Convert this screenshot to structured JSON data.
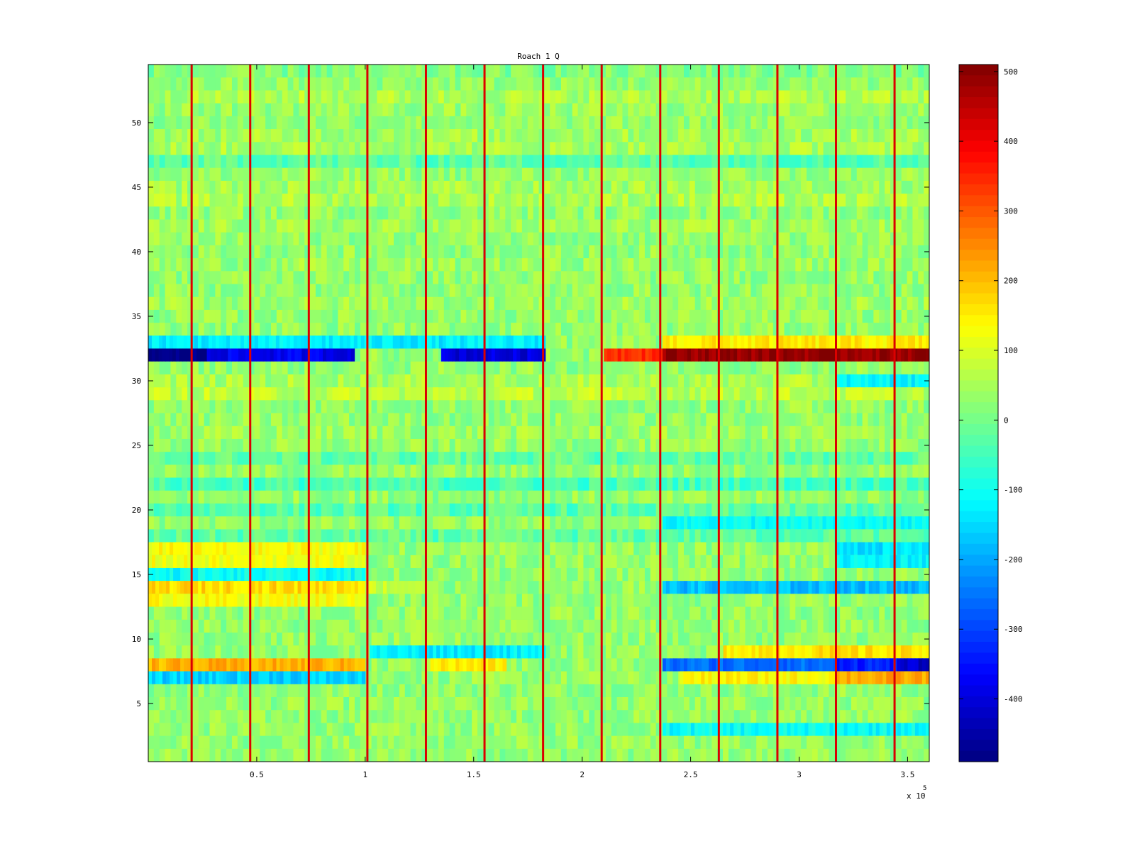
{
  "chart_data": {
    "type": "heatmap",
    "title": "Roach 1 Q",
    "xlabel": "",
    "ylabel": "",
    "x_multiplier_label": "x 10",
    "x_multiplier_exponent": "5",
    "xlim": [
      0,
      3.6
    ],
    "ylim": [
      0.5,
      54.5
    ],
    "xticks": [
      {
        "value": 0.5,
        "label": "0.5"
      },
      {
        "value": 1.0,
        "label": "1"
      },
      {
        "value": 1.5,
        "label": "1.5"
      },
      {
        "value": 2.0,
        "label": "2"
      },
      {
        "value": 2.5,
        "label": "2.5"
      },
      {
        "value": 3.0,
        "label": "3"
      },
      {
        "value": 3.5,
        "label": "3.5"
      }
    ],
    "yticks": [
      {
        "value": 5,
        "label": "5"
      },
      {
        "value": 10,
        "label": "10"
      },
      {
        "value": 15,
        "label": "15"
      },
      {
        "value": 20,
        "label": "20"
      },
      {
        "value": 25,
        "label": "25"
      },
      {
        "value": 30,
        "label": "30"
      },
      {
        "value": 35,
        "label": "35"
      },
      {
        "value": 40,
        "label": "40"
      },
      {
        "value": 45,
        "label": "45"
      },
      {
        "value": 50,
        "label": "50"
      }
    ],
    "colormap": "jet",
    "clim": [
      -490,
      510
    ],
    "colorbar_ticks": [
      {
        "value": 500,
        "label": "500"
      },
      {
        "value": 400,
        "label": "400"
      },
      {
        "value": 300,
        "label": "300"
      },
      {
        "value": 200,
        "label": "200"
      },
      {
        "value": 100,
        "label": "100"
      },
      {
        "value": 0,
        "label": "0"
      },
      {
        "value": -100,
        "label": "-100"
      },
      {
        "value": -200,
        "label": "-200"
      },
      {
        "value": -300,
        "label": "-300"
      },
      {
        "value": -400,
        "label": "-400"
      }
    ],
    "baseline_value": 30,
    "row_offsets": [
      {
        "row": 54,
        "value": 10
      },
      {
        "row": 52,
        "value": 55
      },
      {
        "row": 51,
        "value": 35
      },
      {
        "row": 49,
        "value": 45
      },
      {
        "row": 48,
        "value": 50
      },
      {
        "row": 47,
        "value": -25
      },
      {
        "row": 45,
        "value": 45
      },
      {
        "row": 44,
        "value": 55
      },
      {
        "row": 42,
        "value": 40
      },
      {
        "row": 39,
        "value": 35
      },
      {
        "row": 36,
        "value": 40
      },
      {
        "row": 30,
        "value": 50
      },
      {
        "row": 29,
        "value": 70
      },
      {
        "row": 26,
        "value": 40
      },
      {
        "row": 24,
        "value": -20
      },
      {
        "row": 22,
        "value": -45
      },
      {
        "row": 20,
        "value": -30
      },
      {
        "row": 18,
        "value": -25
      }
    ],
    "segments": [
      {
        "row": 33,
        "x0": 0.0,
        "x1": 1.83,
        "value": -130
      },
      {
        "row": 33,
        "x0": 2.37,
        "x1": 3.6,
        "value": 150
      },
      {
        "row": 32,
        "x0": 0.0,
        "x1": 0.27,
        "value": -490
      },
      {
        "row": 32,
        "x0": 0.27,
        "x1": 0.95,
        "value": -380
      },
      {
        "row": 32,
        "x0": 1.35,
        "x1": 1.83,
        "value": -400
      },
      {
        "row": 32,
        "x0": 2.1,
        "x1": 2.37,
        "value": 350
      },
      {
        "row": 32,
        "x0": 2.37,
        "x1": 3.6,
        "value": 490
      },
      {
        "row": 30,
        "x0": 3.17,
        "x1": 3.6,
        "value": -120
      },
      {
        "row": 19,
        "x0": 2.37,
        "x1": 3.6,
        "value": -110
      },
      {
        "row": 17,
        "x0": 0.0,
        "x1": 1.0,
        "value": 130
      },
      {
        "row": 17,
        "x0": 3.17,
        "x1": 3.6,
        "value": -140
      },
      {
        "row": 16,
        "x0": 0.0,
        "x1": 1.0,
        "value": 120
      },
      {
        "row": 16,
        "x0": 3.17,
        "x1": 3.6,
        "value": -120
      },
      {
        "row": 15,
        "x0": 0.0,
        "x1": 1.0,
        "value": -110
      },
      {
        "row": 14,
        "x0": 0.0,
        "x1": 1.0,
        "value": 170
      },
      {
        "row": 14,
        "x0": 1.0,
        "x1": 1.28,
        "value": 80
      },
      {
        "row": 14,
        "x0": 2.37,
        "x1": 3.6,
        "value": -180
      },
      {
        "row": 13,
        "x0": 0.0,
        "x1": 1.0,
        "value": 130
      },
      {
        "row": 9,
        "x0": 1.02,
        "x1": 1.83,
        "value": -130
      },
      {
        "row": 9,
        "x0": 2.65,
        "x1": 3.6,
        "value": 160
      },
      {
        "row": 8,
        "x0": 0.0,
        "x1": 1.0,
        "value": 210
      },
      {
        "row": 8,
        "x0": 1.3,
        "x1": 1.65,
        "value": 150
      },
      {
        "row": 8,
        "x0": 2.37,
        "x1": 3.6,
        "value": -260
      },
      {
        "row": 8,
        "x0": 3.17,
        "x1": 3.45,
        "value": -330
      },
      {
        "row": 8,
        "x0": 3.45,
        "x1": 3.6,
        "value": -420
      },
      {
        "row": 7,
        "x0": 0.0,
        "x1": 1.0,
        "value": -160
      },
      {
        "row": 7,
        "x0": 2.45,
        "x1": 3.17,
        "value": 140
      },
      {
        "row": 7,
        "x0": 3.17,
        "x1": 3.6,
        "value": 220
      },
      {
        "row": 3,
        "x0": 2.37,
        "x1": 3.6,
        "value": -110
      }
    ],
    "vertical_stripes": {
      "x_positions": [
        0.2,
        0.47,
        0.74,
        1.01,
        1.28,
        1.55,
        1.82,
        2.09,
        2.36,
        2.63,
        2.9,
        3.17,
        3.44
      ],
      "value": 420
    }
  }
}
